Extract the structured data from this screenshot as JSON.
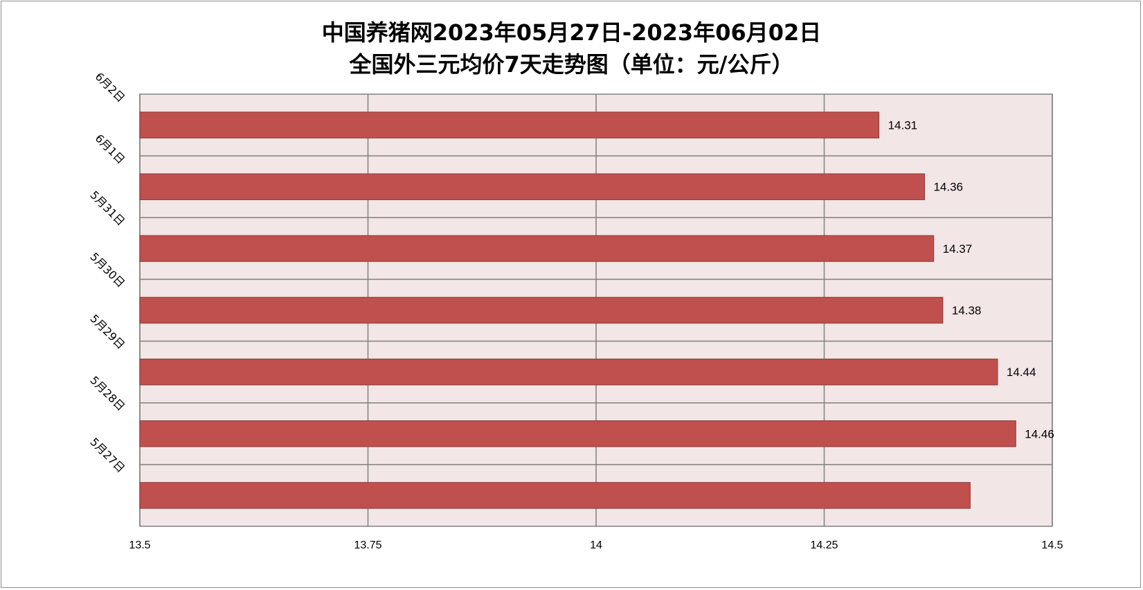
{
  "chart_data": {
    "type": "bar",
    "orientation": "horizontal",
    "title_line1": "中国养猪网2023年05月27日-2023年06月02日",
    "title_line2": "全国外三元均价7天走势图（单位：元/公斤）",
    "categories": [
      "6月2日",
      "6月1日",
      "5月31日",
      "5月30日",
      "5月29日",
      "5月28日",
      "5月27日"
    ],
    "values": [
      14.31,
      14.36,
      14.37,
      14.38,
      14.44,
      14.46,
      14.41
    ],
    "data_labels": [
      "14.31",
      "14.36",
      "14.37",
      "14.38",
      "14.44",
      "14.46",
      ""
    ],
    "xlim": [
      13.5,
      14.5
    ],
    "x_ticks": [
      13.5,
      13.75,
      14,
      14.25,
      14.5
    ],
    "x_tick_labels": [
      "13.5",
      "13.75",
      "14",
      "14.25",
      "14.5"
    ],
    "grid": true,
    "colors": {
      "bar_fill": "#C0504D",
      "bar_stroke": "#8C3836",
      "plot_background": "#F2E6E6",
      "gridline": "#808080",
      "frame_border": "#8C8C8C"
    }
  }
}
